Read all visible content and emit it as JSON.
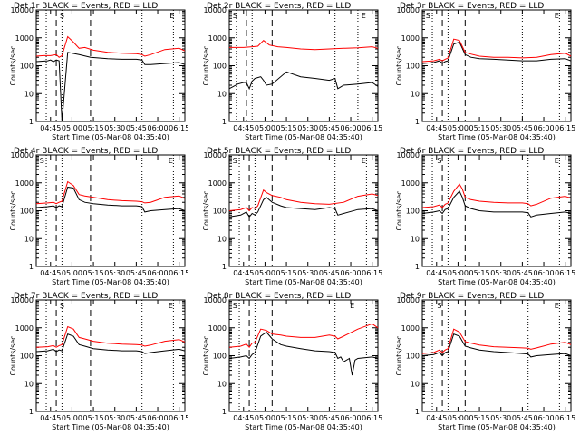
{
  "figure": {
    "xlabel": "Start Time (05-Mar-08 04:35:40)",
    "ylabel": "Counts/sec",
    "x_tick_labels": [
      "04:45",
      "05:00",
      "05:15",
      "05:30",
      "05:45",
      "06:00",
      "06:15"
    ],
    "y_tick_labels": [
      "1",
      "10",
      "100",
      "1000",
      "10000"
    ],
    "colors": {
      "events": "#000000",
      "lld": "#ff0000",
      "axes": "#000000"
    },
    "markers": {
      "S": "S",
      "E": "E"
    }
  },
  "chart_data": [
    {
      "type": "line",
      "title": "Det 1r BLACK = Events, RED = LLD",
      "x_unit": "minutes after 04:35:40",
      "xlim": [
        0,
        104
      ],
      "ylim": [
        1,
        10000
      ],
      "yscale": "log",
      "dashed_lines": [
        14,
        38
      ],
      "dotted_lines": [
        7,
        18,
        74,
        96
      ],
      "labels": [
        {
          "text_key": "S",
          "x": 18
        },
        {
          "text_key": "E",
          "x": 95
        }
      ],
      "series": [
        {
          "color_key": "events",
          "x": [
            0,
            8,
            10,
            12,
            14,
            16,
            18,
            22,
            30,
            38,
            50,
            60,
            70,
            74,
            76,
            80,
            90,
            100,
            104
          ],
          "values": [
            140,
            150,
            160,
            140,
            160,
            150,
            0,
            300,
            250,
            200,
            180,
            170,
            170,
            160,
            110,
            110,
            120,
            130,
            110
          ]
        },
        {
          "color_key": "lld",
          "x": [
            0,
            5,
            10,
            14,
            16,
            18,
            22,
            26,
            30,
            34,
            40,
            50,
            60,
            70,
            74,
            76,
            80,
            90,
            100,
            104
          ],
          "values": [
            220,
            230,
            230,
            250,
            200,
            230,
            1100,
            700,
            420,
            450,
            360,
            300,
            280,
            270,
            250,
            220,
            250,
            380,
            420,
            340
          ]
        }
      ]
    },
    {
      "type": "line",
      "title": "Det 2r BLACK = Events, RED = LLD",
      "x_unit": "minutes after 04:35:40",
      "xlim": [
        0,
        104
      ],
      "ylim": [
        1,
        10000
      ],
      "yscale": "log",
      "dashed_lines": [
        12,
        30
      ],
      "dotted_lines": [
        5,
        16,
        74,
        90
      ],
      "labels": [
        {
          "text_key": "S",
          "x": 4
        },
        {
          "text_key": "E",
          "x": 94
        }
      ],
      "series": [
        {
          "color_key": "events",
          "x": [
            0,
            6,
            10,
            12,
            14,
            16,
            18,
            22,
            24,
            26,
            30,
            40,
            50,
            60,
            70,
            74,
            76,
            80,
            90,
            100,
            104
          ],
          "values": [
            15,
            22,
            25,
            25,
            15,
            28,
            35,
            40,
            30,
            20,
            22,
            60,
            40,
            35,
            30,
            35,
            15,
            20,
            22,
            25,
            18
          ]
        },
        {
          "color_key": "lld",
          "x": [
            0,
            10,
            16,
            20,
            24,
            28,
            34,
            40,
            50,
            60,
            70,
            80,
            90,
            100,
            104
          ],
          "values": [
            450,
            450,
            480,
            500,
            800,
            550,
            480,
            450,
            400,
            380,
            400,
            420,
            440,
            480,
            420
          ]
        }
      ]
    },
    {
      "type": "line",
      "title": "Det 3r BLACK = Events, RED = LLD",
      "x_unit": "minutes after 04:35:40",
      "xlim": [
        0,
        104
      ],
      "ylim": [
        1,
        10000
      ],
      "yscale": "log",
      "dashed_lines": [
        14,
        30
      ],
      "dotted_lines": [
        7,
        18,
        70,
        96
      ],
      "labels": [
        {
          "text_key": "S",
          "x": 4
        },
        {
          "text_key": "E",
          "x": 94
        }
      ],
      "series": [
        {
          "color_key": "events",
          "x": [
            0,
            8,
            12,
            14,
            16,
            18,
            22,
            26,
            30,
            34,
            40,
            50,
            60,
            70,
            80,
            90,
            100,
            104
          ],
          "values": [
            120,
            130,
            150,
            120,
            140,
            150,
            600,
            700,
            250,
            200,
            180,
            170,
            160,
            150,
            150,
            170,
            180,
            150
          ]
        },
        {
          "color_key": "lld",
          "x": [
            0,
            8,
            12,
            14,
            16,
            18,
            22,
            26,
            30,
            34,
            40,
            50,
            60,
            70,
            80,
            90,
            100,
            104
          ],
          "values": [
            140,
            150,
            170,
            150,
            170,
            190,
            900,
            800,
            300,
            260,
            220,
            200,
            200,
            190,
            200,
            250,
            280,
            220
          ]
        }
      ]
    },
    {
      "type": "line",
      "title": "Det 4r BLACK = Events, RED = LLD",
      "x_unit": "minutes after 04:35:40",
      "xlim": [
        0,
        104
      ],
      "ylim": [
        1,
        10000
      ],
      "yscale": "log",
      "dashed_lines": [
        14,
        38
      ],
      "dotted_lines": [
        7,
        18,
        74,
        96
      ],
      "labels": [
        {
          "text_key": "S",
          "x": 4
        },
        {
          "text_key": "E",
          "x": 94
        }
      ],
      "series": [
        {
          "color_key": "events",
          "x": [
            0,
            8,
            12,
            14,
            16,
            18,
            22,
            26,
            30,
            34,
            40,
            50,
            60,
            70,
            74,
            76,
            80,
            90,
            100,
            104
          ],
          "values": [
            130,
            140,
            150,
            130,
            150,
            140,
            700,
            650,
            250,
            200,
            180,
            160,
            150,
            150,
            140,
            90,
            100,
            110,
            120,
            100
          ]
        },
        {
          "color_key": "lld",
          "x": [
            0,
            8,
            12,
            14,
            16,
            18,
            22,
            26,
            30,
            34,
            40,
            50,
            60,
            70,
            74,
            76,
            80,
            90,
            100,
            104
          ],
          "values": [
            180,
            190,
            200,
            180,
            200,
            220,
            1100,
            800,
            380,
            340,
            300,
            250,
            230,
            220,
            210,
            190,
            200,
            300,
            340,
            270
          ]
        }
      ]
    },
    {
      "type": "line",
      "title": "Det 5r BLACK = Events, RED = LLD",
      "x_unit": "minutes after 04:35:40",
      "xlim": [
        0,
        104
      ],
      "ylim": [
        1,
        10000
      ],
      "yscale": "log",
      "dashed_lines": [
        14,
        30
      ],
      "dotted_lines": [
        7,
        18,
        74,
        96
      ],
      "labels": [
        {
          "text_key": "S",
          "x": 4
        },
        {
          "text_key": "E",
          "x": 94
        }
      ],
      "series": [
        {
          "color_key": "events",
          "x": [
            0,
            8,
            12,
            14,
            16,
            18,
            20,
            24,
            26,
            30,
            36,
            40,
            50,
            60,
            70,
            74,
            76,
            80,
            90,
            100,
            104
          ],
          "values": [
            60,
            70,
            90,
            60,
            80,
            70,
            90,
            250,
            300,
            200,
            150,
            130,
            120,
            110,
            130,
            120,
            70,
            80,
            110,
            120,
            100
          ]
        },
        {
          "color_key": "lld",
          "x": [
            0,
            8,
            12,
            14,
            16,
            18,
            20,
            24,
            26,
            30,
            36,
            40,
            50,
            60,
            70,
            80,
            90,
            100,
            104
          ],
          "values": [
            100,
            110,
            130,
            100,
            130,
            120,
            150,
            550,
            450,
            350,
            300,
            250,
            200,
            180,
            170,
            200,
            330,
            400,
            350
          ]
        }
      ]
    },
    {
      "type": "line",
      "title": "Det 6r BLACK = Events, RED = LLD",
      "x_unit": "minutes after 04:35:40",
      "xlim": [
        0,
        104
      ],
      "ylim": [
        1,
        10000
      ],
      "yscale": "log",
      "dashed_lines": [
        14,
        30
      ],
      "dotted_lines": [
        7,
        18,
        74,
        96
      ],
      "labels": [
        {
          "text_key": "S",
          "x": 12
        },
        {
          "text_key": "E",
          "x": 94
        }
      ],
      "series": [
        {
          "color_key": "events",
          "x": [
            0,
            8,
            12,
            14,
            16,
            18,
            22,
            26,
            28,
            30,
            34,
            40,
            50,
            60,
            70,
            74,
            76,
            80,
            90,
            100,
            104
          ],
          "values": [
            80,
            90,
            100,
            80,
            110,
            120,
            300,
            500,
            300,
            150,
            120,
            100,
            90,
            90,
            90,
            85,
            60,
            70,
            80,
            90,
            80
          ]
        },
        {
          "color_key": "lld",
          "x": [
            0,
            8,
            12,
            14,
            16,
            18,
            22,
            26,
            28,
            30,
            34,
            40,
            50,
            60,
            70,
            74,
            76,
            80,
            90,
            100,
            104
          ],
          "values": [
            130,
            140,
            160,
            130,
            170,
            190,
            500,
            900,
            600,
            300,
            250,
            220,
            200,
            190,
            190,
            180,
            150,
            170,
            280,
            330,
            280
          ]
        }
      ]
    },
    {
      "type": "line",
      "title": "Det 7r BLACK = Events, RED = LLD",
      "x_unit": "minutes after 04:35:40",
      "xlim": [
        0,
        104
      ],
      "ylim": [
        1,
        10000
      ],
      "yscale": "log",
      "dashed_lines": [
        14,
        38
      ],
      "dotted_lines": [
        7,
        18,
        74,
        96
      ],
      "labels": [
        {
          "text_key": "S",
          "x": 18
        },
        {
          "text_key": "E",
          "x": 94
        }
      ],
      "series": [
        {
          "color_key": "events",
          "x": [
            0,
            8,
            12,
            14,
            16,
            18,
            22,
            26,
            30,
            34,
            40,
            50,
            60,
            70,
            74,
            76,
            80,
            90,
            100,
            104
          ],
          "values": [
            140,
            150,
            170,
            140,
            160,
            150,
            600,
            500,
            250,
            220,
            180,
            160,
            150,
            150,
            140,
            120,
            130,
            150,
            170,
            150
          ]
        },
        {
          "color_key": "lld",
          "x": [
            0,
            8,
            12,
            14,
            16,
            18,
            22,
            26,
            30,
            34,
            40,
            50,
            60,
            70,
            74,
            76,
            80,
            90,
            100,
            104
          ],
          "values": [
            200,
            210,
            230,
            200,
            230,
            250,
            1100,
            900,
            450,
            400,
            330,
            280,
            260,
            250,
            240,
            220,
            240,
            330,
            380,
            310
          ]
        }
      ]
    },
    {
      "type": "line",
      "title": "Det 8r BLACK = Events, RED = LLD",
      "x_unit": "minutes after 04:35:40",
      "xlim": [
        0,
        104
      ],
      "ylim": [
        1,
        10000
      ],
      "yscale": "log",
      "dashed_lines": [
        14,
        30
      ],
      "dotted_lines": [
        7,
        18,
        74,
        96
      ],
      "labels": [
        {
          "text_key": "S",
          "x": 4
        },
        {
          "text_key": "E",
          "x": 86
        }
      ],
      "series": [
        {
          "color_key": "events",
          "x": [
            0,
            8,
            12,
            14,
            16,
            18,
            22,
            26,
            30,
            36,
            40,
            50,
            60,
            70,
            74,
            76,
            78,
            80,
            84,
            86,
            88,
            90,
            100,
            104
          ],
          "values": [
            80,
            90,
            100,
            80,
            110,
            130,
            500,
            700,
            400,
            250,
            220,
            180,
            150,
            140,
            130,
            80,
            90,
            60,
            80,
            20,
            70,
            80,
            90,
            80
          ]
        },
        {
          "color_key": "lld",
          "x": [
            0,
            8,
            12,
            14,
            16,
            18,
            22,
            26,
            30,
            36,
            40,
            50,
            60,
            70,
            74,
            76,
            80,
            90,
            100,
            104
          ],
          "values": [
            200,
            220,
            260,
            200,
            280,
            300,
            900,
            800,
            600,
            550,
            500,
            450,
            450,
            550,
            500,
            400,
            500,
            900,
            1400,
            1000
          ]
        }
      ]
    },
    {
      "type": "line",
      "title": "Det 9r BLACK = Events, RED = LLD",
      "x_unit": "minutes after 04:35:40",
      "xlim": [
        0,
        104
      ],
      "ylim": [
        1,
        10000
      ],
      "yscale": "log",
      "dashed_lines": [
        14,
        30
      ],
      "dotted_lines": [
        7,
        18,
        74,
        96
      ],
      "labels": [
        {
          "text_key": "S",
          "x": 12
        },
        {
          "text_key": "E",
          "x": 94
        }
      ],
      "series": [
        {
          "color_key": "events",
          "x": [
            0,
            8,
            12,
            14,
            16,
            18,
            22,
            26,
            30,
            34,
            40,
            50,
            60,
            70,
            74,
            76,
            80,
            90,
            100,
            104
          ],
          "values": [
            100,
            110,
            130,
            100,
            130,
            140,
            600,
            500,
            220,
            190,
            160,
            140,
            130,
            120,
            115,
            90,
            100,
            110,
            120,
            100
          ]
        },
        {
          "color_key": "lld",
          "x": [
            0,
            8,
            12,
            14,
            16,
            18,
            22,
            26,
            30,
            34,
            40,
            50,
            60,
            70,
            74,
            76,
            80,
            90,
            100,
            104
          ],
          "values": [
            120,
            130,
            160,
            130,
            160,
            180,
            900,
            700,
            320,
            280,
            240,
            210,
            200,
            190,
            185,
            170,
            190,
            260,
            300,
            250
          ]
        }
      ]
    }
  ]
}
